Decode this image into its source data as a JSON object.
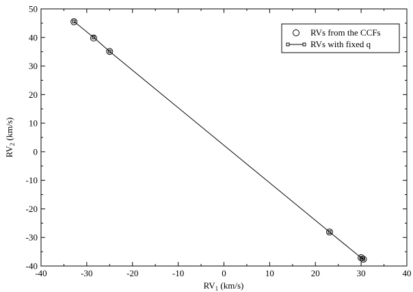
{
  "chart_data": {
    "type": "scatter",
    "xlabel": {
      "main": "RV",
      "sub": "1",
      "unit": " (km/s)"
    },
    "ylabel": {
      "main": "RV",
      "sub": "2",
      "unit": " (km/s)"
    },
    "xlim": [
      -40,
      40
    ],
    "ylim": [
      -40,
      50
    ],
    "xticks": [
      -40,
      -30,
      -20,
      -10,
      0,
      10,
      20,
      30,
      40
    ],
    "yticks": [
      -40,
      -30,
      -20,
      -10,
      0,
      10,
      20,
      30,
      40,
      50
    ],
    "grid": false,
    "legend_position": "top-right",
    "series": [
      {
        "name": "RVs from the CCFs",
        "marker": "circle",
        "line": false,
        "x": [
          -32.8,
          -28.5,
          -25.0,
          23.1,
          30.0,
          30.5
        ],
        "y": [
          45.5,
          39.8,
          35.1,
          -28.1,
          -37.1,
          -37.6
        ]
      },
      {
        "name": "RVs with fixed q",
        "marker": "square",
        "line": true,
        "x": [
          -32.8,
          -28.5,
          -25.0,
          23.1,
          30.0,
          30.5
        ],
        "y": [
          45.6,
          40.0,
          35.1,
          -28.1,
          -37.1,
          -37.6
        ]
      }
    ],
    "colors": {
      "line": "#000000",
      "marker": "#000000"
    }
  }
}
